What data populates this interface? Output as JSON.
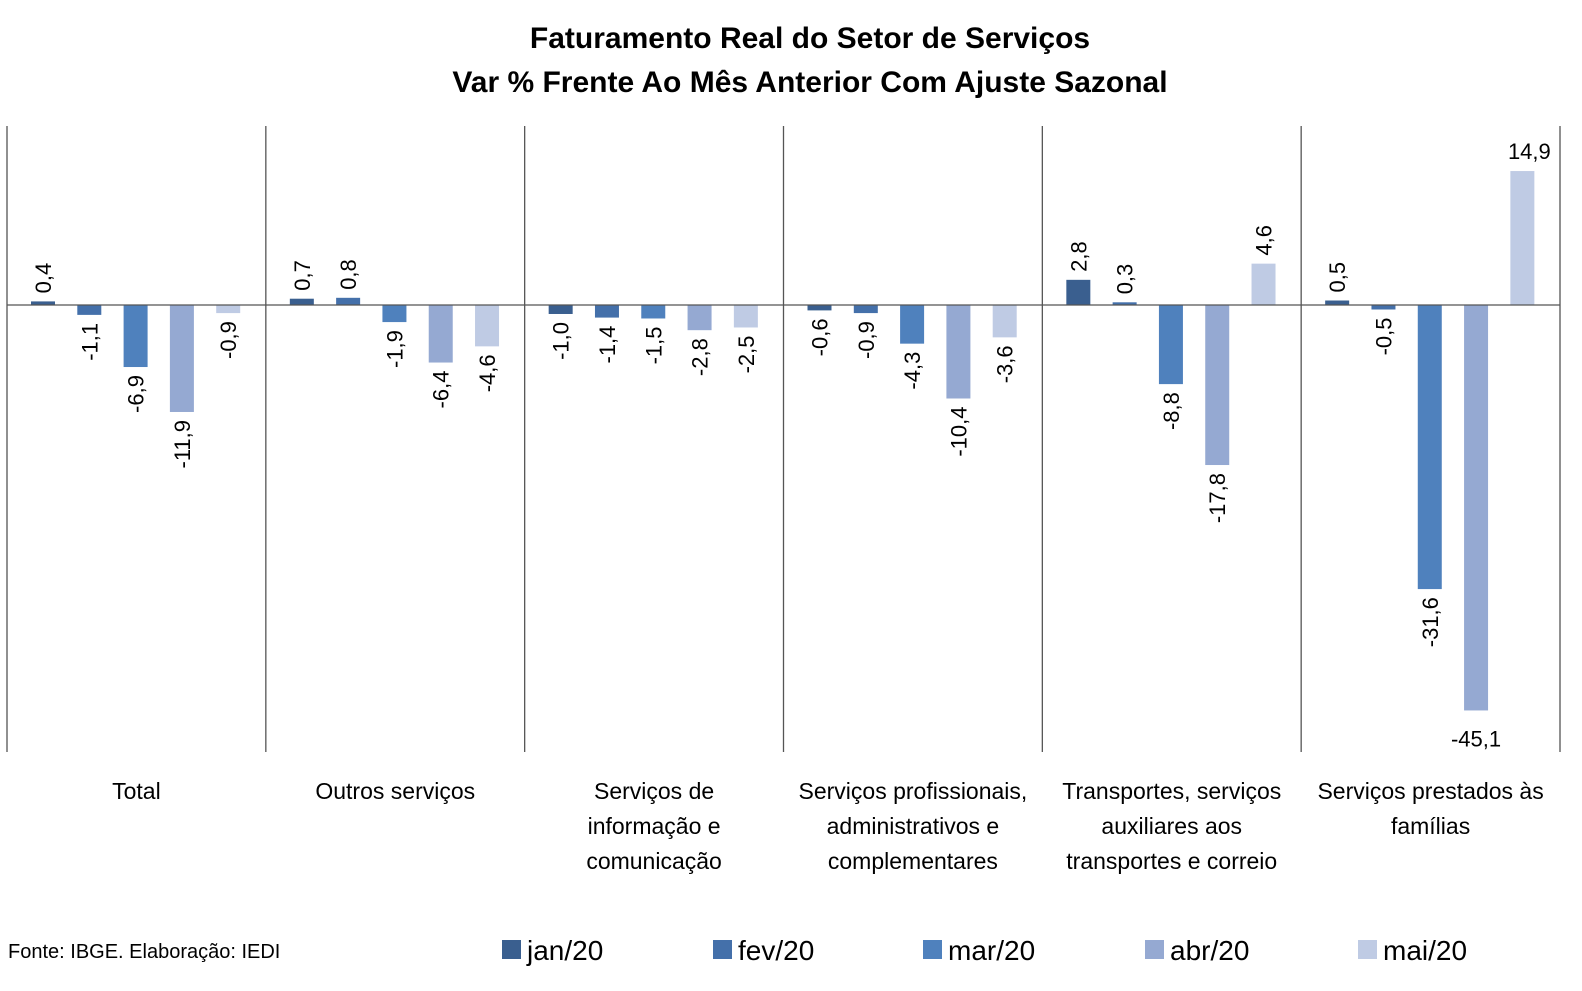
{
  "chart_data": {
    "type": "bar",
    "title": "Faturamento Real do Setor de Serviços",
    "subtitle": "Var % Frente Ao Mês Anterior Com Ajuste Sazonal",
    "xlabel": "",
    "ylabel": "",
    "ylim": [
      -50,
      20
    ],
    "grid": false,
    "legend_position": "bottom",
    "categories": [
      [
        "Total"
      ],
      [
        "Outros serviços"
      ],
      [
        "Serviços de",
        "informação e",
        "comunicação"
      ],
      [
        "Serviços profissionais,",
        "administrativos e",
        "complementares"
      ],
      [
        "Transportes, serviços",
        "auxiliares aos",
        "transportes e correio"
      ],
      [
        "Serviços prestados às",
        "famílias"
      ]
    ],
    "series": [
      {
        "name": "jan/20",
        "color": "#3a5f8f",
        "values": [
          0.4,
          0.7,
          -1.0,
          -0.6,
          2.8,
          0.5
        ],
        "labels": [
          "0,4",
          "0,7",
          "-1,0",
          "-0,6",
          "2,8",
          "0,5"
        ]
      },
      {
        "name": "fev/20",
        "color": "#4470aa",
        "values": [
          -1.1,
          0.8,
          -1.4,
          -0.9,
          0.3,
          -0.5
        ],
        "labels": [
          "-1,1",
          "0,8",
          "-1,4",
          "-0,9",
          "0,3",
          "-0,5"
        ]
      },
      {
        "name": "mar/20",
        "color": "#4f81bd",
        "values": [
          -6.9,
          -1.9,
          -1.5,
          -4.3,
          -8.8,
          -31.6
        ],
        "labels": [
          "-6,9",
          "-1,9",
          "-1,5",
          "-4,3",
          "-8,8",
          "-31,6"
        ]
      },
      {
        "name": "abr/20",
        "color": "#95a9d2",
        "values": [
          -11.9,
          -6.4,
          -2.8,
          -10.4,
          -17.8,
          -45.1
        ],
        "labels": [
          "-11,9",
          "-6,4",
          "-2,8",
          "-10,4",
          "-17,8",
          "-45,1"
        ]
      },
      {
        "name": "mai/20",
        "color": "#bfcbe4",
        "values": [
          -0.9,
          -4.6,
          -2.5,
          -3.6,
          4.6,
          14.9
        ],
        "labels": [
          "-0,9",
          "-4,6",
          "-2,5",
          "-3,6",
          "4,6",
          "14,9"
        ]
      }
    ],
    "source": "Fonte: IBGE. Elaboração: IEDI"
  }
}
